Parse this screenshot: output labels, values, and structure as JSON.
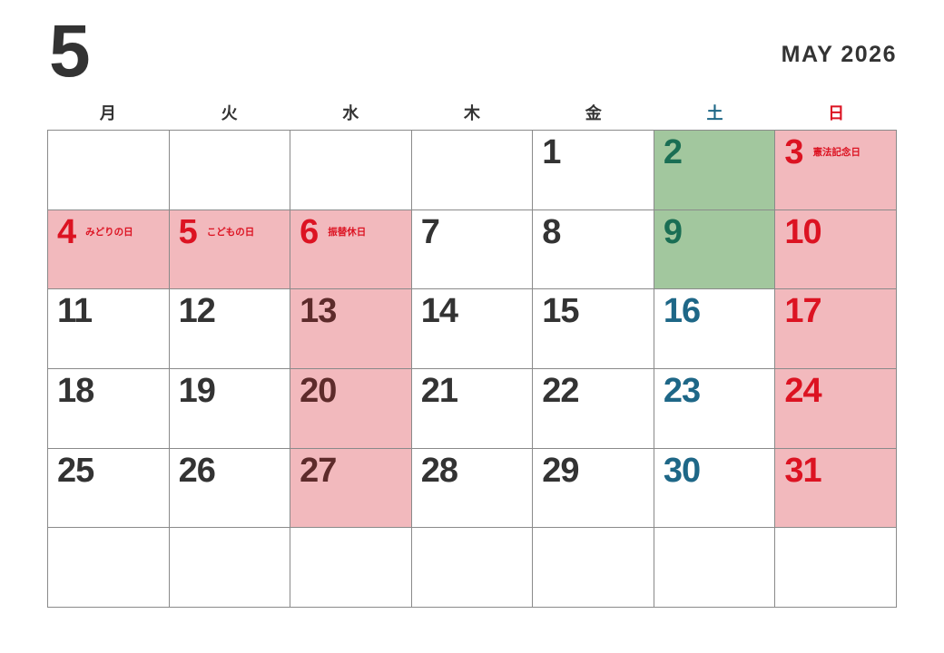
{
  "header": {
    "month_number": "5",
    "month_year_label": "MAY 2026"
  },
  "weekday_headers": [
    {
      "label": "月",
      "type": "weekday"
    },
    {
      "label": "火",
      "type": "weekday"
    },
    {
      "label": "水",
      "type": "weekday"
    },
    {
      "label": "木",
      "type": "weekday"
    },
    {
      "label": "金",
      "type": "weekday"
    },
    {
      "label": "土",
      "type": "saturday"
    },
    {
      "label": "日",
      "type": "sunday"
    }
  ],
  "colors": {
    "text_dark": "#333333",
    "saturday_teal": "#1e6787",
    "sunday_red": "#dc1322",
    "holiday_pink_bg": "#f2b9bd",
    "green_bg": "#a2c79e",
    "green_text": "#1a6e54",
    "maroon_text": "#5d2b2b",
    "grid_border": "#8a8a8a"
  },
  "weeks": [
    [
      {
        "day": "",
        "style": "empty"
      },
      {
        "day": "",
        "style": "empty"
      },
      {
        "day": "",
        "style": "empty"
      },
      {
        "day": "",
        "style": "empty"
      },
      {
        "day": "1",
        "style": "normal"
      },
      {
        "day": "2",
        "style": "green"
      },
      {
        "day": "3",
        "style": "holiday",
        "label": "憲法記念日"
      }
    ],
    [
      {
        "day": "4",
        "style": "holiday",
        "label": "みどりの日"
      },
      {
        "day": "5",
        "style": "holiday",
        "label": "こどもの日"
      },
      {
        "day": "6",
        "style": "holiday",
        "label": "振替休日"
      },
      {
        "day": "7",
        "style": "normal"
      },
      {
        "day": "8",
        "style": "normal"
      },
      {
        "day": "9",
        "style": "green"
      },
      {
        "day": "10",
        "style": "holiday"
      }
    ],
    [
      {
        "day": "11",
        "style": "normal"
      },
      {
        "day": "12",
        "style": "normal"
      },
      {
        "day": "13",
        "style": "pink-muted"
      },
      {
        "day": "14",
        "style": "normal"
      },
      {
        "day": "15",
        "style": "normal"
      },
      {
        "day": "16",
        "style": "saturday"
      },
      {
        "day": "17",
        "style": "holiday"
      }
    ],
    [
      {
        "day": "18",
        "style": "normal"
      },
      {
        "day": "19",
        "style": "normal"
      },
      {
        "day": "20",
        "style": "pink-muted"
      },
      {
        "day": "21",
        "style": "normal"
      },
      {
        "day": "22",
        "style": "normal"
      },
      {
        "day": "23",
        "style": "saturday"
      },
      {
        "day": "24",
        "style": "holiday"
      }
    ],
    [
      {
        "day": "25",
        "style": "normal"
      },
      {
        "day": "26",
        "style": "normal"
      },
      {
        "day": "27",
        "style": "pink-muted"
      },
      {
        "day": "28",
        "style": "normal"
      },
      {
        "day": "29",
        "style": "normal"
      },
      {
        "day": "30",
        "style": "saturday"
      },
      {
        "day": "31",
        "style": "holiday"
      }
    ],
    [
      {
        "day": "",
        "style": "empty"
      },
      {
        "day": "",
        "style": "empty"
      },
      {
        "day": "",
        "style": "empty"
      },
      {
        "day": "",
        "style": "empty"
      },
      {
        "day": "",
        "style": "empty"
      },
      {
        "day": "",
        "style": "empty"
      },
      {
        "day": "",
        "style": "empty"
      }
    ]
  ]
}
